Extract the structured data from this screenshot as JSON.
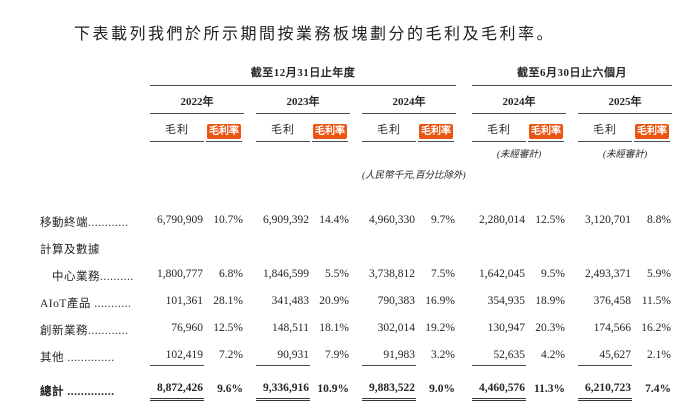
{
  "page": {
    "intro": "下表載列我們於所示期間按業務板塊劃分的毛利及毛利率。"
  },
  "colors": {
    "highlight_orange": "#ea5514",
    "rule_gray": "#4a4a4a",
    "text": "#262626"
  },
  "table": {
    "groups": [
      {
        "label": "截至12月31日止年度"
      },
      {
        "label": "截至6月30日止六個月"
      }
    ],
    "years": [
      "2022年",
      "2023年",
      "2024年",
      "2024年",
      "2025年"
    ],
    "col_headers": {
      "gp": "毛利",
      "margin": "毛利率"
    },
    "unaudited_note": "(未經審計)",
    "unit_note": "(人民幣千元,百分比除外)",
    "rows": [
      {
        "label": "移動終端",
        "dots": "............",
        "indent": false,
        "values": [
          "6,790,909",
          "10.7%",
          "6,909,392",
          "14.4%",
          "4,960,330",
          "9.7%",
          "2,280,014",
          "12.5%",
          "3,120,701",
          "8.8%"
        ]
      },
      {
        "label": "計算及數據",
        "dots": "",
        "indent": false,
        "values": null
      },
      {
        "label": "中心業務",
        "dots": "..........",
        "indent": true,
        "values": [
          "1,800,777",
          "6.8%",
          "1,846,599",
          "5.5%",
          "3,738,812",
          "7.5%",
          "1,642,045",
          "9.5%",
          "2,493,371",
          "5.9%"
        ]
      },
      {
        "label": "AIoT產品",
        "dots": " ...........",
        "indent": false,
        "values": [
          "101,361",
          "28.1%",
          "341,483",
          "20.9%",
          "790,383",
          "16.9%",
          "354,935",
          "18.9%",
          "376,458",
          "11.5%"
        ]
      },
      {
        "label": "創新業務",
        "dots": "............",
        "indent": false,
        "values": [
          "76,960",
          "12.5%",
          "148,511",
          "18.1%",
          "302,014",
          "19.2%",
          "130,947",
          "20.3%",
          "174,566",
          "16.2%"
        ]
      },
      {
        "label": "其他",
        "dots": " ..............",
        "indent": false,
        "underline": true,
        "values": [
          "102,419",
          "7.2%",
          "90,931",
          "7.9%",
          "91,983",
          "3.2%",
          "52,635",
          "4.2%",
          "45,627",
          "2.1%"
        ]
      },
      {
        "label": "總計",
        "dots": " ..............",
        "indent": false,
        "total": true,
        "values": [
          "8,872,426",
          "9.6%",
          "9,336,916",
          "10.9%",
          "9,883,522",
          "9.0%",
          "4,460,576",
          "11.3%",
          "6,210,723",
          "7.4%"
        ]
      }
    ]
  }
}
